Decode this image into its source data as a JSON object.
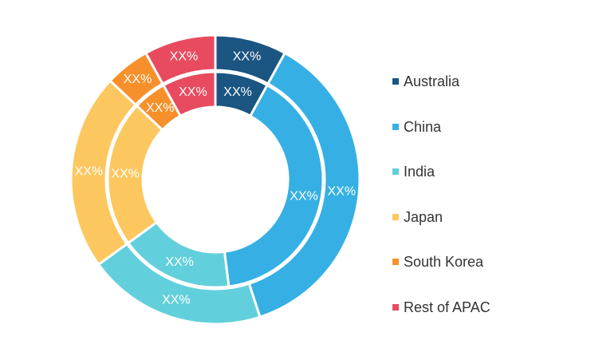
{
  "chart_data": {
    "type": "donut",
    "series": [
      {
        "ring": "outer",
        "values": [
          {
            "category": "Australia",
            "value": 8,
            "label": "XX%"
          },
          {
            "category": "China",
            "value": 37,
            "label": "XX%"
          },
          {
            "category": "India",
            "value": 20,
            "label": "XX%"
          },
          {
            "category": "Japan",
            "value": 22,
            "label": "XX%"
          },
          {
            "category": "South Korea",
            "value": 5,
            "label": "XX%"
          },
          {
            "category": "Rest of APAC",
            "value": 8,
            "label": "XX%"
          }
        ]
      },
      {
        "ring": "inner",
        "values": [
          {
            "category": "Australia",
            "value": 8,
            "label": "XX%"
          },
          {
            "category": "China",
            "value": 40,
            "label": "XX%"
          },
          {
            "category": "India",
            "value": 17,
            "label": "XX%"
          },
          {
            "category": "Japan",
            "value": 22,
            "label": "XX%"
          },
          {
            "category": "South Korea",
            "value": 5,
            "label": "XX%"
          },
          {
            "category": "Rest of APAC",
            "value": 8,
            "label": "XX%"
          }
        ]
      }
    ],
    "legend": {
      "position": "right",
      "entries": [
        "Australia",
        "China",
        "India",
        "Japan",
        "South Korea",
        "Rest of APAC"
      ]
    },
    "colors": {
      "Australia": "#1b5581",
      "China": "#36b0e4",
      "India": "#62d0dc",
      "Japan": "#fdc75f",
      "South Korea": "#f7902b",
      "Rest of APAC": "#e84a5f"
    }
  }
}
